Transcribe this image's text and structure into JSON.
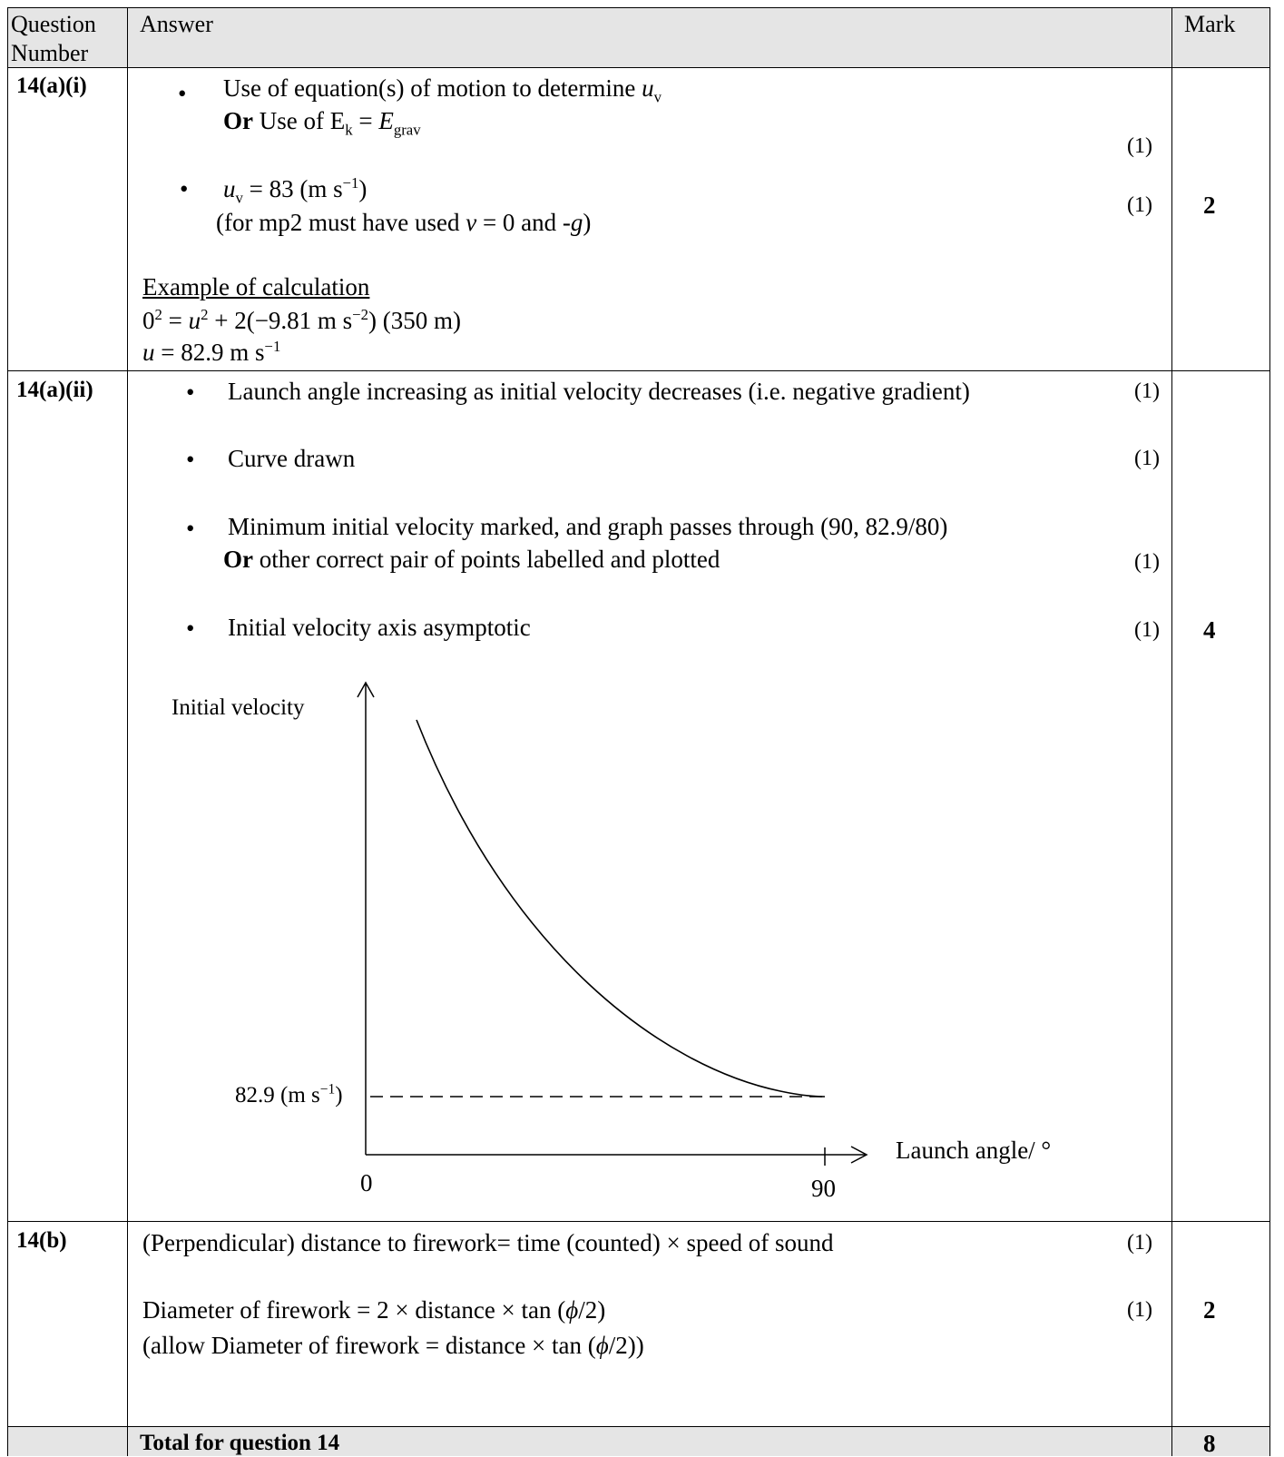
{
  "header": {
    "question_number_line1": "Question",
    "question_number_line2": "Number",
    "answer": "Answer",
    "mark": "Mark"
  },
  "q14ai": {
    "number": "14(a)(i)",
    "bullet1_line1_prefix": "Use of equation(s) of motion to determine ",
    "bullet1_line1_var": "u",
    "bullet1_line1_sub": "v",
    "bullet1_line2_or": "Or",
    "bullet1_line2_text": " Use of E",
    "bullet1_line2_sub_k": "k",
    "bullet1_line2_eq": " = ",
    "bullet1_line2_E": "E",
    "bullet1_line2_sub_grav": "grav",
    "bullet1_mark": "(1)",
    "bullet2_var": "u",
    "bullet2_sub": "v",
    "bullet2_text": " = 83 (m s",
    "bullet2_sup": "−1",
    "bullet2_close": ")",
    "bullet2_note_prefix": "(for mp2 must have used ",
    "bullet2_note_v": "v",
    "bullet2_note_mid": " = 0 and -",
    "bullet2_note_g": "g",
    "bullet2_note_close": ")",
    "bullet2_mark": "(1)",
    "total_mark": "2",
    "example_heading": "Example of calculation",
    "calc_line1_a": "0",
    "calc_line1_sup_a": "2",
    "calc_line1_b": " = ",
    "calc_line1_u": "u",
    "calc_line1_sup_b": "2",
    "calc_line1_c": " + 2(−9.81 m s",
    "calc_line1_sup_c": "−2",
    "calc_line1_d": ") (350 m)",
    "calc_line2_u": "u",
    "calc_line2_text": " = 82.9 m s",
    "calc_line2_sup": "−1"
  },
  "q14aii": {
    "number": "14(a)(ii)",
    "point1": "Launch angle increasing as initial velocity decreases (i.e. negative gradient)",
    "point1_mark": "(1)",
    "point2": "Curve drawn",
    "point2_mark": "(1)",
    "point3_line1": "Minimum initial velocity marked, and graph passes through (90, 82.9/80)",
    "point3_or": "Or",
    "point3_line2": " other correct pair of points labelled and plotted",
    "point3_mark": "(1)",
    "point4": "Initial velocity axis asymptotic",
    "point4_mark": "(1)",
    "total_mark": "4",
    "graph": {
      "y_axis_label": "Initial velocity",
      "x_axis_label": "Launch angle/ °",
      "origin_label": "0",
      "x_tick_label": "90",
      "min_label_prefix": "82.9 (m s",
      "min_label_sup": "−1",
      "min_label_close": ")"
    }
  },
  "q14b": {
    "number": "14(b)",
    "line1": "(Perpendicular) distance to firework= time (counted) × speed of sound",
    "line1_mark": "(1)",
    "line2_prefix": "Diameter of firework = 2 × distance × tan (",
    "line2_phi": "ϕ",
    "line2_suffix": "/2)",
    "line2_mark": "(1)",
    "line3_prefix": "(allow Diameter of firework = distance × tan (",
    "line3_phi": "ϕ",
    "line3_suffix": "/2))",
    "total_mark": "2"
  },
  "total": {
    "label": "Total for question 14",
    "mark": "8"
  }
}
